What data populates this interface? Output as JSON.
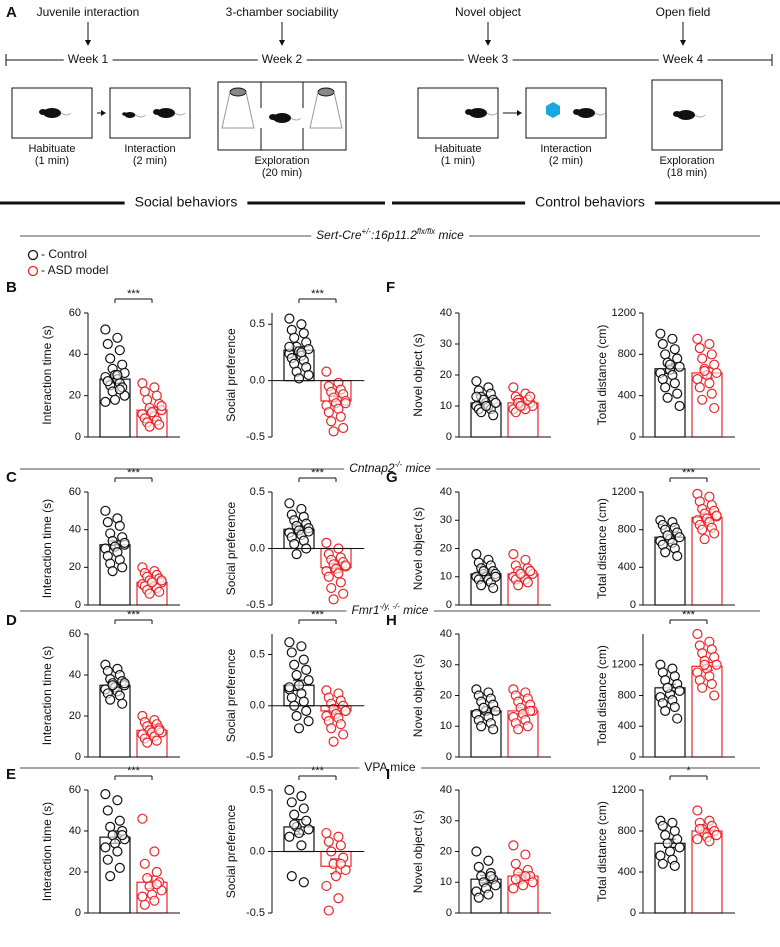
{
  "figure": {
    "panel_label": "A",
    "events": [
      {
        "label": "Juvenile interaction",
        "week": "Week 1",
        "steps": [
          {
            "label": "Habituate",
            "duration": "(1 min)"
          },
          {
            "label": "Interaction",
            "duration": "(2 min)"
          }
        ]
      },
      {
        "label": "3-chamber sociability",
        "week": "Week 2",
        "steps": [
          {
            "label": "Exploration",
            "duration": "(20 min)"
          }
        ]
      },
      {
        "label": "Novel object",
        "week": "Week 3",
        "steps": [
          {
            "label": "Habituate",
            "duration": "(1 min)"
          },
          {
            "label": "Interaction",
            "duration": "(2 min)"
          }
        ]
      },
      {
        "label": "Open field",
        "week": "Week 4",
        "steps": [
          {
            "label": "Exploration",
            "duration": "(18 min)"
          }
        ]
      }
    ],
    "groups": [
      "Social behaviors",
      "Control behaviors"
    ],
    "legend": [
      {
        "label": "- Control",
        "color": "#111111"
      },
      {
        "label": "- ASD model",
        "color": "#e8262a"
      }
    ],
    "rows": [
      {
        "title": [
          {
            "text": "Sert-Cre"
          },
          {
            "text": "+/-",
            "sup": true
          },
          {
            "text": ":16p11.2"
          },
          {
            "text": "flx/flx",
            "sup": true
          },
          {
            "text": " mice"
          }
        ],
        "italic": true,
        "left_label": "B",
        "right_label": "F"
      },
      {
        "title": [
          {
            "text": "Cntnap2"
          },
          {
            "text": "-/-",
            "sup": true
          },
          {
            "text": " mice"
          }
        ],
        "italic": true,
        "left_label": "C",
        "right_label": "G"
      },
      {
        "title": [
          {
            "text": "Fmr1"
          },
          {
            "text": "-/y, -/-",
            "sup": true
          },
          {
            "text": " mice"
          }
        ],
        "italic": true,
        "left_label": "D",
        "right_label": "H"
      },
      {
        "title": [
          {
            "text": "VPA mice"
          }
        ],
        "italic": false,
        "left_label": "E",
        "right_label": "I"
      }
    ]
  },
  "chart_data": [
    {
      "type": "bar",
      "ylabel": "Interaction time (s)",
      "ylim": [
        0,
        60
      ],
      "yticks": [
        0,
        20,
        40,
        60
      ],
      "colors": [
        "#111111",
        "#e8262a"
      ],
      "values": [
        28,
        13
      ],
      "errors": [
        2,
        1.5
      ],
      "significance": "***",
      "points": [
        [
          52,
          48,
          45,
          42,
          38,
          35,
          33,
          31,
          30,
          29,
          28,
          27,
          26,
          25,
          24,
          22,
          20,
          18,
          17,
          30,
          27,
          23
        ],
        [
          26,
          24,
          22,
          20,
          18,
          16,
          14,
          13,
          12,
          11,
          10,
          9,
          8,
          7,
          6,
          5,
          15,
          12
        ]
      ]
    },
    {
      "type": "bar",
      "ylabel": "Social preference",
      "ylim": [
        -0.5,
        0.6
      ],
      "yticks": [
        -0.5,
        {
          "value": 0,
          "label": "0.0"
        },
        0.5
      ],
      "colors": [
        "#111111",
        "#e8262a"
      ],
      "values": [
        0.27,
        -0.18
      ],
      "errors": [
        0.03,
        0.04
      ],
      "significance": "***",
      "points": [
        [
          0.55,
          0.5,
          0.45,
          0.42,
          0.38,
          0.34,
          0.3,
          0.28,
          0.26,
          0.24,
          0.22,
          0.2,
          0.18,
          0.15,
          0.12,
          0.08,
          0.05,
          0.02,
          0.3,
          0.25
        ],
        [
          0.08,
          -0.02,
          -0.05,
          -0.08,
          -0.1,
          -0.12,
          -0.15,
          -0.18,
          -0.2,
          -0.22,
          -0.25,
          -0.28,
          -0.32,
          -0.36,
          -0.42,
          -0.45,
          -0.2
        ]
      ]
    },
    {
      "type": "bar",
      "ylabel": "Novel object (s)",
      "ylim": [
        0,
        40
      ],
      "yticks": [
        0,
        10,
        20,
        30,
        40
      ],
      "colors": [
        "#111111",
        "#e8262a"
      ],
      "values": [
        11,
        11
      ],
      "errors": [
        0.7,
        0.6
      ],
      "points": [
        [
          18,
          16,
          15,
          14,
          13,
          12,
          12,
          11,
          11,
          10,
          10,
          9,
          9,
          8,
          7,
          12,
          11,
          10,
          13
        ],
        [
          16,
          14,
          13,
          12,
          12,
          11,
          11,
          10,
          10,
          9,
          9,
          8,
          12,
          11,
          13,
          10
        ]
      ]
    },
    {
      "type": "bar",
      "ylabel": "Total distance (cm)",
      "ylim": [
        0,
        1200
      ],
      "yticks": [
        0,
        400,
        800,
        1200
      ],
      "colors": [
        "#111111",
        "#e8262a"
      ],
      "values": [
        660,
        620
      ],
      "errors": [
        45,
        50
      ],
      "points": [
        [
          1000,
          950,
          900,
          850,
          800,
          760,
          720,
          680,
          650,
          620,
          600,
          560,
          520,
          480,
          420,
          380,
          300,
          700
        ],
        [
          950,
          900,
          860,
          800,
          760,
          700,
          660,
          620,
          600,
          560,
          520,
          480,
          420,
          360,
          280,
          640
        ]
      ]
    },
    {
      "type": "bar",
      "ylabel": "Interaction time (s)",
      "ylim": [
        0,
        60
      ],
      "yticks": [
        0,
        20,
        40,
        60
      ],
      "colors": [
        "#111111",
        "#e8262a"
      ],
      "values": [
        32,
        12
      ],
      "errors": [
        2,
        1
      ],
      "significance": "***",
      "points": [
        [
          50,
          46,
          44,
          42,
          38,
          36,
          34,
          32,
          31,
          30,
          28,
          26,
          24,
          22,
          20,
          18,
          33
        ],
        [
          20,
          18,
          17,
          16,
          15,
          14,
          13,
          12,
          12,
          11,
          10,
          10,
          9,
          8,
          7,
          6,
          13,
          12
        ]
      ]
    },
    {
      "type": "bar",
      "ylabel": "Social preference",
      "ylim": [
        -0.5,
        0.5
      ],
      "yticks": [
        -0.5,
        {
          "value": 0,
          "label": "0.0"
        },
        0.5
      ],
      "colors": [
        "#111111",
        "#e8262a"
      ],
      "values": [
        0.17,
        -0.17
      ],
      "errors": [
        0.03,
        0.04
      ],
      "significance": "***",
      "points": [
        [
          0.4,
          0.35,
          0.3,
          0.28,
          0.25,
          0.22,
          0.2,
          0.18,
          0.16,
          0.14,
          0.12,
          0.1,
          0.07,
          0.04,
          0.0,
          -0.05,
          0.15
        ],
        [
          0.05,
          0.0,
          -0.05,
          -0.08,
          -0.1,
          -0.12,
          -0.14,
          -0.16,
          -0.18,
          -0.2,
          -0.22,
          -0.25,
          -0.3,
          -0.35,
          -0.4,
          -0.45,
          -0.15
        ]
      ]
    },
    {
      "type": "bar",
      "ylabel": "Novel object (s)",
      "ylim": [
        0,
        40
      ],
      "yticks": [
        0,
        10,
        20,
        30,
        40
      ],
      "colors": [
        "#111111",
        "#e8262a"
      ],
      "values": [
        11,
        11
      ],
      "errors": [
        0.8,
        0.7
      ],
      "points": [
        [
          18,
          16,
          15,
          14,
          13,
          12,
          11,
          11,
          10,
          10,
          9,
          9,
          8,
          7,
          6,
          12,
          10
        ],
        [
          18,
          16,
          14,
          13,
          12,
          12,
          11,
          11,
          10,
          10,
          9,
          9,
          8,
          7,
          12,
          11
        ]
      ]
    },
    {
      "type": "bar",
      "ylabel": "Total distance (cm)",
      "ylim": [
        0,
        1200
      ],
      "yticks": [
        0,
        400,
        800,
        1200
      ],
      "colors": [
        "#111111",
        "#e8262a"
      ],
      "values": [
        720,
        930
      ],
      "errors": [
        25,
        30
      ],
      "significance": "***",
      "points": [
        [
          900,
          880,
          850,
          820,
          800,
          770,
          740,
          720,
          700,
          680,
          660,
          640,
          600,
          560,
          520,
          740
        ],
        [
          1180,
          1150,
          1100,
          1060,
          1020,
          1000,
          970,
          940,
          920,
          900,
          880,
          850,
          820,
          800,
          760,
          700,
          950
        ]
      ]
    },
    {
      "type": "bar",
      "ylabel": "Interaction time (s)",
      "ylim": [
        0,
        60
      ],
      "yticks": [
        0,
        20,
        40,
        60
      ],
      "colors": [
        "#111111",
        "#e8262a"
      ],
      "values": [
        35,
        13
      ],
      "errors": [
        1.2,
        1
      ],
      "significance": "***",
      "points": [
        [
          45,
          43,
          42,
          40,
          38,
          37,
          36,
          35,
          34,
          33,
          32,
          31,
          30,
          28,
          26,
          35,
          36
        ],
        [
          20,
          18,
          17,
          16,
          15,
          14,
          13,
          12,
          12,
          11,
          10,
          9,
          8,
          7,
          13
        ]
      ]
    },
    {
      "type": "bar",
      "ylabel": "Social preference",
      "ylim": [
        -0.5,
        0.7
      ],
      "yticks": [
        -0.5,
        {
          "value": 0,
          "label": "0.0"
        },
        0.5
      ],
      "colors": [
        "#111111",
        "#e8262a"
      ],
      "values": [
        0.2,
        -0.05
      ],
      "errors": [
        0.05,
        0.03
      ],
      "significance": "***",
      "points": [
        [
          0.62,
          0.58,
          0.52,
          0.45,
          0.4,
          0.35,
          0.3,
          0.25,
          0.2,
          0.16,
          0.12,
          0.08,
          0.04,
          0.0,
          -0.05,
          -0.1,
          -0.15,
          -0.22,
          0.18
        ],
        [
          0.15,
          0.12,
          0.08,
          0.05,
          0.02,
          0.0,
          -0.03,
          -0.05,
          -0.08,
          -0.1,
          -0.12,
          -0.15,
          -0.18,
          -0.22,
          -0.28,
          -0.35,
          -0.05
        ]
      ]
    },
    {
      "type": "bar",
      "ylabel": "Novel object (s)",
      "ylim": [
        0,
        40
      ],
      "yticks": [
        0,
        10,
        20,
        30,
        40
      ],
      "colors": [
        "#111111",
        "#e8262a"
      ],
      "values": [
        15,
        15
      ],
      "errors": [
        1,
        1
      ],
      "points": [
        [
          22,
          21,
          20,
          19,
          18,
          17,
          16,
          15,
          15,
          14,
          13,
          12,
          11,
          10,
          9,
          16
        ],
        [
          22,
          21,
          20,
          19,
          18,
          17,
          16,
          15,
          14,
          13,
          12,
          11,
          10,
          9,
          15
        ]
      ]
    },
    {
      "type": "bar",
      "ylabel": "Total distance (cm)",
      "ylim": [
        0,
        1600
      ],
      "yticks": [
        0,
        400,
        800,
        1200
      ],
      "colors": [
        "#111111",
        "#e8262a"
      ],
      "values": [
        900,
        1180
      ],
      "errors": [
        45,
        50
      ],
      "significance": "***",
      "points": [
        [
          1200,
          1150,
          1100,
          1050,
          1000,
          950,
          900,
          860,
          820,
          780,
          740,
          700,
          650,
          600,
          500,
          900
        ],
        [
          1600,
          1500,
          1450,
          1400,
          1350,
          1300,
          1250,
          1200,
          1150,
          1100,
          1050,
          1000,
          950,
          900,
          800,
          1200
        ]
      ]
    },
    {
      "type": "bar",
      "ylabel": "Interaction time (s)",
      "ylim": [
        0,
        60
      ],
      "yticks": [
        0,
        20,
        40,
        60
      ],
      "colors": [
        "#111111",
        "#e8262a"
      ],
      "values": [
        37,
        15
      ],
      "errors": [
        3,
        3
      ],
      "significance": "***",
      "points": [
        [
          58,
          55,
          50,
          45,
          42,
          40,
          38,
          36,
          34,
          32,
          30,
          26,
          22,
          18,
          38
        ],
        [
          46,
          30,
          24,
          20,
          17,
          15,
          13,
          11,
          9,
          8,
          6,
          4,
          14
        ]
      ]
    },
    {
      "type": "bar",
      "ylabel": "Social preference",
      "ylim": [
        -0.5,
        0.5
      ],
      "yticks": [
        -0.5,
        {
          "value": 0,
          "label": "0.0"
        },
        0.5
      ],
      "colors": [
        "#111111",
        "#e8262a"
      ],
      "values": [
        0.2,
        -0.12
      ],
      "errors": [
        0.06,
        0.06
      ],
      "significance": "***",
      "points": [
        [
          0.5,
          0.45,
          0.4,
          0.35,
          0.3,
          0.25,
          0.2,
          0.18,
          0.15,
          0.12,
          0.05,
          -0.2,
          -0.25,
          0.22
        ],
        [
          0.15,
          0.12,
          0.08,
          0.05,
          0.0,
          -0.05,
          -0.1,
          -0.15,
          -0.2,
          -0.28,
          -0.38,
          -0.48,
          -0.1
        ]
      ]
    },
    {
      "type": "bar",
      "ylabel": "Novel object (s)",
      "ylim": [
        0,
        40
      ],
      "yticks": [
        0,
        10,
        20,
        30,
        40
      ],
      "colors": [
        "#111111",
        "#e8262a"
      ],
      "values": [
        11,
        12
      ],
      "errors": [
        1.2,
        1.2
      ],
      "points": [
        [
          20,
          17,
          15,
          13,
          12,
          11,
          10,
          9,
          8,
          7,
          6,
          5,
          12
        ],
        [
          22,
          19,
          16,
          14,
          13,
          12,
          11,
          10,
          9,
          8,
          12,
          11
        ]
      ]
    },
    {
      "type": "bar",
      "ylabel": "Total distance (cm)",
      "ylim": [
        0,
        1200
      ],
      "yticks": [
        0,
        400,
        800,
        1200
      ],
      "colors": [
        "#111111",
        "#e8262a"
      ],
      "values": [
        680,
        800
      ],
      "errors": [
        40,
        25
      ],
      "significance": "*",
      "points": [
        [
          900,
          880,
          850,
          800,
          760,
          720,
          680,
          640,
          600,
          560,
          520,
          480,
          460
        ],
        [
          1000,
          900,
          880,
          850,
          820,
          800,
          780,
          760,
          740,
          720,
          700,
          820
        ]
      ]
    }
  ]
}
